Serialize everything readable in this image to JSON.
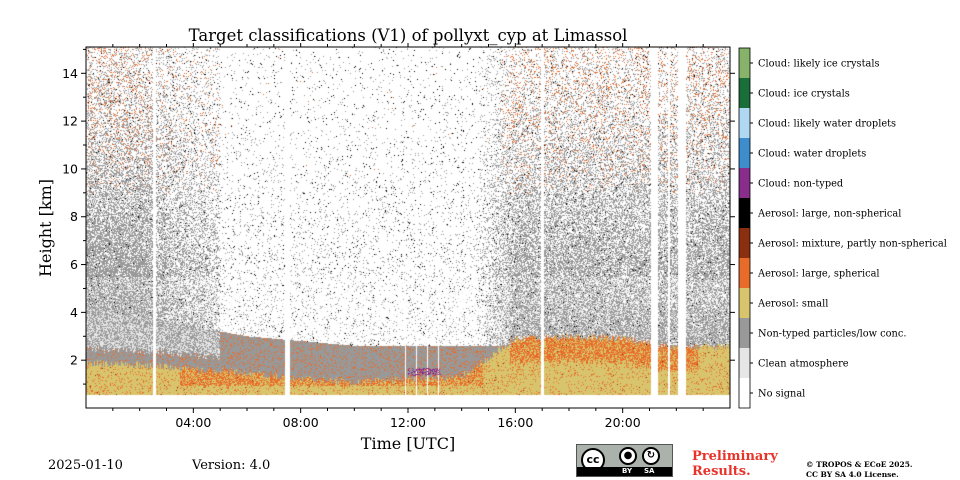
{
  "chart_data": {
    "type": "heatmap",
    "title": "Target classifications (V1) of pollyxt_cyp at Limassol",
    "xlabel": "Time [UTC]",
    "ylabel": "Height [km]",
    "xlim": [
      0,
      24
    ],
    "ylim": [
      0,
      15.1
    ],
    "x_ticks": [
      {
        "value": 4,
        "label": "04:00"
      },
      {
        "value": 8,
        "label": "08:00"
      },
      {
        "value": 12,
        "label": "12:00"
      },
      {
        "value": 16,
        "label": "16:00"
      },
      {
        "value": 20,
        "label": "20:00"
      }
    ],
    "y_ticks": [
      {
        "value": 2,
        "label": "2"
      },
      {
        "value": 4,
        "label": "4"
      },
      {
        "value": 6,
        "label": "6"
      },
      {
        "value": 8,
        "label": "8"
      },
      {
        "value": 10,
        "label": "10"
      },
      {
        "value": 12,
        "label": "12"
      },
      {
        "value": 14,
        "label": "14"
      }
    ],
    "classes": [
      {
        "label": "No signal",
        "color": "#ffffff"
      },
      {
        "label": "Clean atmosphere",
        "color": "#e6e6e6"
      },
      {
        "label": "Non-typed particles/low conc.",
        "color": "#999999"
      },
      {
        "label": "Aerosol: small",
        "color": "#d8c46c"
      },
      {
        "label": "Aerosol: large, spherical",
        "color": "#e86c29"
      },
      {
        "label": "Aerosol: mixture, partly non-spherical",
        "color": "#8a2f10"
      },
      {
        "label": "Aerosol: large, non-spherical",
        "color": "#000000"
      },
      {
        "label": "Cloud: non-typed",
        "color": "#882d8c"
      },
      {
        "label": "Cloud: water droplets",
        "color": "#3d8ccc"
      },
      {
        "label": "Cloud: likely water droplets",
        "color": "#b0d8f2"
      },
      {
        "label": "Cloud: ice crystals",
        "color": "#1a6e3a"
      },
      {
        "label": "Cloud: likely ice crystals",
        "color": "#86b26a"
      }
    ],
    "missing_data_gaps_utc": [
      [
        2.5,
        2.6
      ],
      [
        16.95,
        17.05
      ],
      [
        21.05,
        21.3
      ],
      [
        21.7,
        21.75
      ],
      [
        22.05,
        22.35
      ]
    ],
    "approx_layers_km": {
      "small_aerosol_top": [
        1.9,
        1.8,
        1.6,
        1.5,
        1.2,
        1.1,
        1.2,
        1.3,
        2.9,
        3.0,
        2.9,
        2.5,
        2.6
      ],
      "clean_atmosphere_top": [
        4.2,
        3.8,
        3.4,
        3.0,
        2.8,
        2.6,
        2.6,
        2.6,
        2.6,
        2.6,
        2.5,
        2.5,
        2.6
      ]
    }
  },
  "footer": {
    "date": "2025-01-10",
    "version": "Version: 4.0",
    "preliminary_line1": "Preliminary",
    "preliminary_line2": "Results.",
    "license_line1": "© TROPOS & ECoE 2025.",
    "license_line2": "CC BY SA 4.0 License.",
    "cc_by": "BY",
    "cc_sa": "SA",
    "cc_logo": "cc"
  }
}
